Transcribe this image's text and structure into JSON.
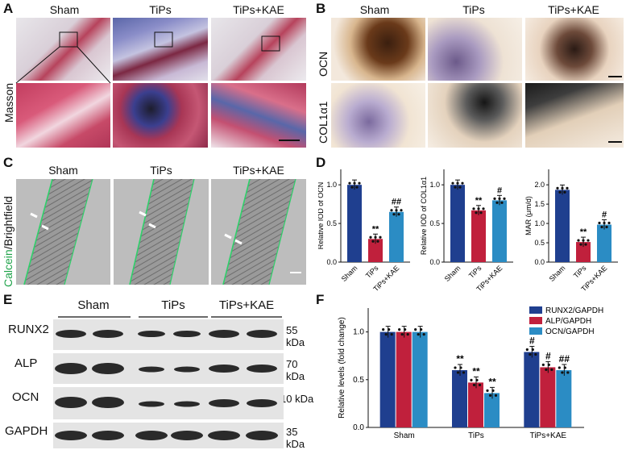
{
  "panels": {
    "A": {
      "letter": "A",
      "cols": [
        "Sham",
        "TiPs",
        "TiPs+KAE"
      ],
      "row_label": "Masson"
    },
    "B": {
      "letter": "B",
      "cols": [
        "Sham",
        "TiPs",
        "TiPs+KAE"
      ],
      "rows": [
        "OCN",
        "COL1α1"
      ]
    },
    "C": {
      "letter": "C",
      "cols": [
        "Sham",
        "TiPs",
        "TiPs+KAE"
      ],
      "row_label_a": "Calcein",
      "row_label_sep": "/",
      "row_label_b": "Brightfield"
    },
    "D": {
      "letter": "D"
    },
    "E": {
      "letter": "E",
      "groups": [
        "Sham",
        "TiPs",
        "TiPs+KAE"
      ],
      "rows": [
        {
          "name": "RUNX2",
          "kda": "55 kDa"
        },
        {
          "name": "ALP",
          "kda": "70 kDa"
        },
        {
          "name": "OCN",
          "kda": "10 kDa"
        },
        {
          "name": "GAPDH",
          "kda": "35 kDa"
        }
      ]
    },
    "F": {
      "letter": "F"
    }
  },
  "chart_data": [
    {
      "type": "bar",
      "panel": "D1",
      "categories": [
        "Sham",
        "TiPs",
        "TiPs+KAE"
      ],
      "values": [
        1.0,
        0.3,
        0.65
      ],
      "ylabel": "Relative IOD of OCN",
      "ylim": [
        0,
        1.2
      ],
      "yticks": [
        "0.0",
        "0.5",
        "1.0"
      ],
      "annotations": [
        "",
        "**",
        "##"
      ],
      "colors": [
        "#1f3f8f",
        "#c0203c",
        "#2b8cc4"
      ]
    },
    {
      "type": "bar",
      "panel": "D2",
      "categories": [
        "Sham",
        "TiPs",
        "TiPs+KAE"
      ],
      "values": [
        1.0,
        0.67,
        0.8
      ],
      "ylabel": "Relative IOD of COL1α1",
      "ylim": [
        0,
        1.2
      ],
      "yticks": [
        "0.0",
        "0.5",
        "1.0"
      ],
      "annotations": [
        "",
        "**",
        "#"
      ],
      "colors": [
        "#1f3f8f",
        "#c0203c",
        "#2b8cc4"
      ]
    },
    {
      "type": "bar",
      "panel": "D3",
      "categories": [
        "Sham",
        "TiPs",
        "TiPs+KAE"
      ],
      "values": [
        1.87,
        0.52,
        0.97
      ],
      "ylabel": "MAR (μm/d)",
      "ylim": [
        0,
        2.4
      ],
      "yticks": [
        "0.0",
        "0.5",
        "1.0",
        "1.5",
        "2.0"
      ],
      "annotations": [
        "",
        "**",
        "#"
      ],
      "colors": [
        "#1f3f8f",
        "#c0203c",
        "#2b8cc4"
      ]
    },
    {
      "type": "bar",
      "panel": "F",
      "categories": [
        "Sham",
        "TiPs",
        "TiPs+KAE"
      ],
      "series": [
        {
          "name": "RUNX2/GAPDH",
          "values": [
            1.0,
            0.6,
            0.79
          ]
        },
        {
          "name": "ALP/GAPDH",
          "values": [
            1.0,
            0.47,
            0.63
          ]
        },
        {
          "name": "OCN/GAPDH",
          "values": [
            1.0,
            0.36,
            0.6
          ]
        }
      ],
      "annotations": [
        [
          "",
          "",
          ""
        ],
        [
          "**",
          "**",
          "**"
        ],
        [
          "#",
          "#",
          "##"
        ]
      ],
      "ylabel": "Relative levels (fold change)",
      "ylim": [
        0,
        1.25
      ],
      "yticks": [
        "0.0",
        "0.5",
        "1.0"
      ],
      "colors": [
        "#1f3f8f",
        "#c0203c",
        "#2b8cc4"
      ],
      "legend": "top-right"
    }
  ]
}
